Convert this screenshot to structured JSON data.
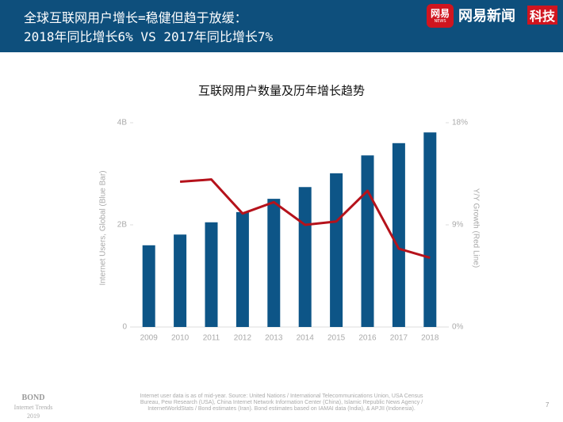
{
  "header": {
    "title_lines": [
      "全球互联网用户增长=稳健但趋于放缓：",
      "2018年同比增长6% VS 2017年同比增长7%"
    ],
    "logo": {
      "icon": "网易",
      "icon_sub": "NEWS",
      "name": "网易新闻",
      "tag": "科技"
    }
  },
  "chart_data": {
    "type": "bar_line",
    "title": "互联网用户数量及历年增长趋势",
    "y_label": "Internet Users, Global (Blue Bar)",
    "y2_label": "Y/Y Growth (Red Line)",
    "categories": [
      "2009",
      "2010",
      "2011",
      "2012",
      "2013",
      "2014",
      "2015",
      "2016",
      "2017",
      "2018"
    ],
    "series": [
      {
        "type": "bar",
        "color": "#0d5587",
        "values": [
          1.6,
          1.81,
          2.05,
          2.25,
          2.51,
          2.74,
          3.01,
          3.36,
          3.6,
          3.81
        ]
      },
      {
        "type": "line",
        "axis": "y2",
        "color": "#b5121b",
        "values": [
          null,
          12.8,
          13.0,
          10.0,
          11.0,
          9.0,
          9.3,
          12.0,
          6.9,
          6.1
        ]
      }
    ],
    "ylim": [
      0,
      4
    ],
    "yticks": [
      0,
      {
        "value": 2,
        "label": "2B"
      },
      {
        "value": 4,
        "label": "4B"
      }
    ],
    "y2lim": [
      0,
      18
    ],
    "y2ticks": [
      {
        "value": 0,
        "label": "0%"
      },
      {
        "value": 9,
        "label": "9%"
      },
      {
        "value": 18,
        "label": "18%"
      }
    ]
  },
  "footer": {
    "brand": "BOND",
    "brand_sub": "Internet Trends",
    "year": "2019",
    "source": "Internet user data is as of mid-year.  Source: United Nations / International Telecommunications Union, USA Census Bureau, Pew Research (USA), China Internet Network Information Center (China), Islamic Republic News Agency / InternetWorldStats / Bond estimates (Iran). Bond estimates based on IAMAI data (India), & APJII (Indonesia).",
    "page": "7"
  }
}
